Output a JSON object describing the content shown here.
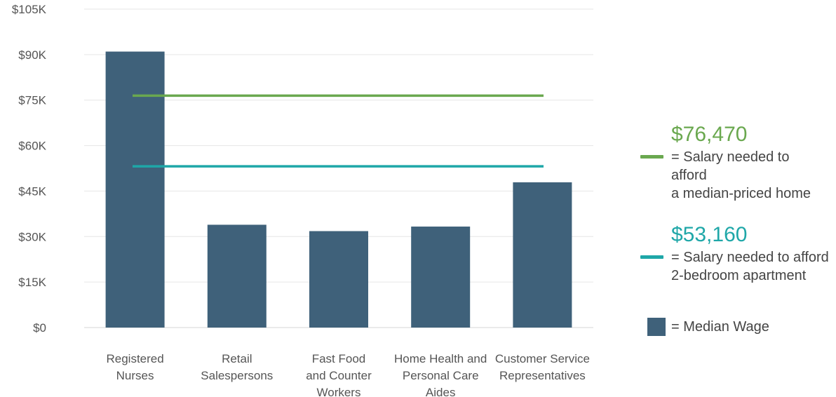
{
  "chart_data": {
    "type": "bar",
    "title": "",
    "xlabel": "",
    "ylabel": "",
    "ylim": [
      0,
      105000
    ],
    "yticks": [
      0,
      15000,
      30000,
      45000,
      60000,
      75000,
      90000,
      105000
    ],
    "ytick_labels": [
      "$0",
      "$15K",
      "$30K",
      "$45K",
      "$60K",
      "$75K",
      "$90K",
      "$105K"
    ],
    "grid": true,
    "legend_position": "right",
    "categories": [
      [
        "Registered",
        "Nurses"
      ],
      [
        "Retail",
        "Salespersons"
      ],
      [
        "Fast Food",
        "and Counter",
        "Workers"
      ],
      [
        "Home Health and",
        "Personal Care",
        "Aides"
      ],
      [
        "Customer Service",
        "Representatives"
      ]
    ],
    "series": [
      {
        "name": "= Median Wage",
        "color": "#3f617a",
        "values": [
          91000,
          33900,
          31800,
          33300,
          47900
        ]
      }
    ],
    "reference_lines": [
      {
        "value": 76470,
        "value_label": "$76,470",
        "color": "#6aa84f",
        "text_lines": [
          "= Salary needed to",
          "afford",
          "a median-priced home"
        ]
      },
      {
        "value": 53160,
        "value_label": "$53,160",
        "color": "#1fa7a8",
        "text_lines": [
          "= Salary needed to afford",
          "2-bedroom apartment"
        ]
      }
    ]
  }
}
